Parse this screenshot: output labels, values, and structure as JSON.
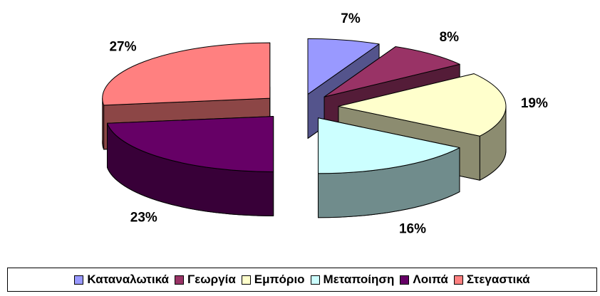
{
  "chart_data": {
    "type": "pie",
    "categories": [
      "Καταναλωτικά",
      "Γεωργία",
      "Εμπόριο",
      "Μεταποίηση",
      "Λοιπά",
      "Στεγαστικά"
    ],
    "values": [
      7,
      8,
      19,
      16,
      23,
      27
    ],
    "value_labels": [
      "7%",
      "8%",
      "19%",
      "16%",
      "23%",
      "27%"
    ],
    "colors": [
      "#9999ff",
      "#993366",
      "#ffffcc",
      "#ccffff",
      "#660066",
      "#ff8080"
    ],
    "legend": "bottom"
  }
}
